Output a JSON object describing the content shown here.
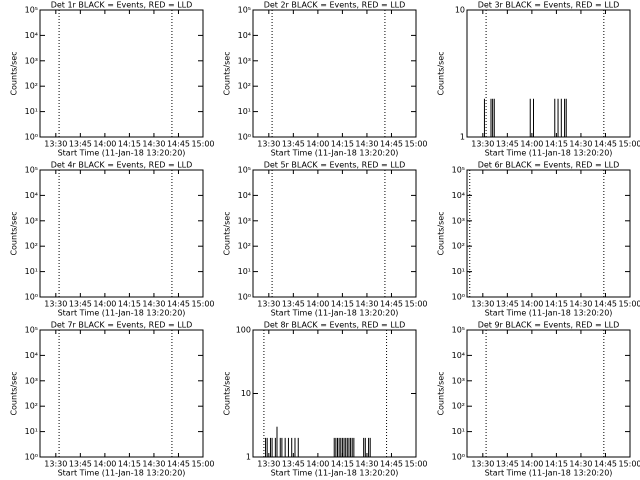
{
  "chart_data": [
    {
      "type": "line",
      "title": "Det 1r BLACK = Events, RED = LLD",
      "x_label": "Start Time (11-Jan-18 13:20:20)",
      "y_label": "Counts/sec",
      "log_y": true,
      "xlim": [
        20.33,
        120
      ],
      "xticks": [
        {
          "value": 30,
          "label": "13:30"
        },
        {
          "value": 45,
          "label": "13:45"
        },
        {
          "value": 60,
          "label": "14:00"
        },
        {
          "value": 75,
          "label": "14:15"
        },
        {
          "value": 90,
          "label": "14:30"
        },
        {
          "value": 105,
          "label": "14:45"
        },
        {
          "value": 120,
          "label": "15:00"
        }
      ],
      "ylim": [
        1,
        100000
      ],
      "yticks": [
        {
          "value": 1,
          "label": "10⁰"
        },
        {
          "value": 10,
          "label": "10¹"
        },
        {
          "value": 100,
          "label": "10²"
        },
        {
          "value": 1000,
          "label": "10³"
        },
        {
          "value": 10000,
          "label": "10⁴"
        },
        {
          "value": 100000,
          "label": "10⁵"
        }
      ],
      "vlines": [
        32,
        101
      ],
      "series": []
    },
    {
      "type": "line",
      "title": "Det 2r BLACK = Events, RED = LLD",
      "x_label": "Start Time (11-Jan-18 13:20:20)",
      "y_label": "Counts/sec",
      "log_y": true,
      "xlim": [
        20.33,
        120
      ],
      "xticks": [
        {
          "value": 30,
          "label": "13:30"
        },
        {
          "value": 45,
          "label": "13:45"
        },
        {
          "value": 60,
          "label": "14:00"
        },
        {
          "value": 75,
          "label": "14:15"
        },
        {
          "value": 90,
          "label": "14:30"
        },
        {
          "value": 105,
          "label": "14:45"
        },
        {
          "value": 120,
          "label": "15:00"
        }
      ],
      "ylim": [
        1,
        100000
      ],
      "yticks": [
        {
          "value": 1,
          "label": "10⁰"
        },
        {
          "value": 10,
          "label": "10¹"
        },
        {
          "value": 100,
          "label": "10²"
        },
        {
          "value": 1000,
          "label": "10³"
        },
        {
          "value": 10000,
          "label": "10⁴"
        },
        {
          "value": 100000,
          "label": "10⁵"
        }
      ],
      "vlines": [
        32,
        101
      ],
      "series": []
    },
    {
      "type": "line",
      "title": "Det 3r BLACK = Events, RED = LLD",
      "x_label": "Start Time (11-Jan-18 13:20:20)",
      "y_label": "Counts/sec",
      "log_y": true,
      "xlim": [
        20.33,
        120
      ],
      "xticks": [
        {
          "value": 30,
          "label": "13:30"
        },
        {
          "value": 45,
          "label": "13:45"
        },
        {
          "value": 60,
          "label": "14:00"
        },
        {
          "value": 75,
          "label": "14:15"
        },
        {
          "value": 90,
          "label": "14:30"
        },
        {
          "value": 105,
          "label": "14:45"
        },
        {
          "value": 120,
          "label": "15:00"
        }
      ],
      "ylim": [
        1,
        10
      ],
      "yticks": [
        1,
        10
      ],
      "vlines": [
        32,
        104
      ],
      "series": [
        {
          "color": "#000000",
          "x": [
            31,
            35,
            36,
            37,
            59,
            61,
            74,
            76,
            78,
            80,
            81
          ],
          "values": [
            2,
            2,
            2,
            2,
            2,
            2,
            2,
            2,
            2,
            2,
            2
          ]
        }
      ]
    },
    {
      "type": "line",
      "title": "Det 4r BLACK = Events, RED = LLD",
      "x_label": "Start Time (11-Jan-18 13:20:20)",
      "y_label": "Counts/sec",
      "log_y": true,
      "xlim": [
        20.33,
        120
      ],
      "xticks": [
        {
          "value": 30,
          "label": "13:30"
        },
        {
          "value": 45,
          "label": "13:45"
        },
        {
          "value": 60,
          "label": "14:00"
        },
        {
          "value": 75,
          "label": "14:15"
        },
        {
          "value": 90,
          "label": "14:30"
        },
        {
          "value": 105,
          "label": "14:45"
        },
        {
          "value": 120,
          "label": "15:00"
        }
      ],
      "ylim": [
        1,
        100000
      ],
      "yticks": [
        {
          "value": 1,
          "label": "10⁰"
        },
        {
          "value": 10,
          "label": "10¹"
        },
        {
          "value": 100,
          "label": "10²"
        },
        {
          "value": 1000,
          "label": "10³"
        },
        {
          "value": 10000,
          "label": "10⁴"
        },
        {
          "value": 100000,
          "label": "10⁵"
        }
      ],
      "vlines": [
        32,
        101
      ],
      "series": []
    },
    {
      "type": "line",
      "title": "Det 5r BLACK = Events, RED = LLD",
      "x_label": "Start Time (11-Jan-18 13:20:20)",
      "y_label": "Counts/sec",
      "log_y": true,
      "xlim": [
        20.33,
        120
      ],
      "xticks": [
        {
          "value": 30,
          "label": "13:30"
        },
        {
          "value": 45,
          "label": "13:45"
        },
        {
          "value": 60,
          "label": "14:00"
        },
        {
          "value": 75,
          "label": "14:15"
        },
        {
          "value": 90,
          "label": "14:30"
        },
        {
          "value": 105,
          "label": "14:45"
        },
        {
          "value": 120,
          "label": "15:00"
        }
      ],
      "ylim": [
        1,
        100000
      ],
      "yticks": [
        {
          "value": 1,
          "label": "10⁰"
        },
        {
          "value": 10,
          "label": "10¹"
        },
        {
          "value": 100,
          "label": "10²"
        },
        {
          "value": 1000,
          "label": "10³"
        },
        {
          "value": 10000,
          "label": "10⁴"
        },
        {
          "value": 100000,
          "label": "10⁵"
        }
      ],
      "vlines": [
        32,
        101
      ],
      "series": []
    },
    {
      "type": "line",
      "title": "Det 6r BLACK = Events, RED = LLD",
      "x_label": "Start Time (11-Jan-18 13:20:20)",
      "y_label": "Counts/sec",
      "log_y": true,
      "xlim": [
        20.33,
        120
      ],
      "xticks": [
        {
          "value": 30,
          "label": "13:30"
        },
        {
          "value": 45,
          "label": "13:45"
        },
        {
          "value": 60,
          "label": "14:00"
        },
        {
          "value": 75,
          "label": "14:15"
        },
        {
          "value": 90,
          "label": "14:30"
        },
        {
          "value": 105,
          "label": "14:45"
        },
        {
          "value": 120,
          "label": "15:00"
        }
      ],
      "ylim": [
        1,
        100000
      ],
      "yticks": [
        {
          "value": 1,
          "label": "10⁰"
        },
        {
          "value": 10,
          "label": "10¹"
        },
        {
          "value": 100,
          "label": "10²"
        },
        {
          "value": 1000,
          "label": "10³"
        },
        {
          "value": 10000,
          "label": "10⁴"
        },
        {
          "value": 100000,
          "label": "10⁵"
        }
      ],
      "vlines": [
        22,
        104
      ],
      "series": []
    },
    {
      "type": "line",
      "title": "Det 7r BLACK = Events, RED = LLD",
      "x_label": "Start Time (11-Jan-18 13:20:20)",
      "y_label": "Counts/sec",
      "log_y": true,
      "xlim": [
        20.33,
        120
      ],
      "xticks": [
        {
          "value": 30,
          "label": "13:30"
        },
        {
          "value": 45,
          "label": "13:45"
        },
        {
          "value": 60,
          "label": "14:00"
        },
        {
          "value": 75,
          "label": "14:15"
        },
        {
          "value": 90,
          "label": "14:30"
        },
        {
          "value": 105,
          "label": "14:45"
        },
        {
          "value": 120,
          "label": "15:00"
        }
      ],
      "ylim": [
        1,
        100000
      ],
      "yticks": [
        {
          "value": 1,
          "label": "10⁰"
        },
        {
          "value": 10,
          "label": "10¹"
        },
        {
          "value": 100,
          "label": "10²"
        },
        {
          "value": 1000,
          "label": "10³"
        },
        {
          "value": 10000,
          "label": "10⁴"
        },
        {
          "value": 100000,
          "label": "10⁵"
        }
      ],
      "vlines": [
        32,
        101
      ],
      "series": []
    },
    {
      "type": "line",
      "title": "Det 8r BLACK = Events, RED = LLD",
      "x_label": "Start Time (11-Jan-18 13:20:20)",
      "y_label": "Counts/sec",
      "log_y": true,
      "xlim": [
        20.33,
        120
      ],
      "xticks": [
        {
          "value": 30,
          "label": "13:30"
        },
        {
          "value": 45,
          "label": "13:45"
        },
        {
          "value": 60,
          "label": "14:00"
        },
        {
          "value": 75,
          "label": "14:15"
        },
        {
          "value": 90,
          "label": "14:30"
        },
        {
          "value": 105,
          "label": "14:45"
        },
        {
          "value": 120,
          "label": "15:00"
        }
      ],
      "ylim": [
        1,
        100
      ],
      "yticks": [
        1,
        10,
        100
      ],
      "vlines": [
        27,
        102
      ],
      "series": [
        {
          "color": "#000000",
          "x": [
            28,
            29,
            31,
            32,
            34,
            35,
            37,
            38,
            40,
            42,
            44,
            46,
            48,
            70,
            71,
            72,
            73,
            74,
            75,
            76,
            77,
            78,
            79,
            80,
            81,
            82,
            88,
            89,
            91,
            92
          ],
          "values": [
            2,
            2,
            2,
            2,
            2,
            3,
            2,
            2,
            2,
            2,
            2,
            2,
            2,
            2,
            2,
            2,
            2,
            2,
            2,
            2,
            2,
            2,
            2,
            2,
            2,
            2,
            2,
            2,
            2,
            2
          ]
        }
      ]
    },
    {
      "type": "line",
      "title": "Det 9r BLACK = Events, RED = LLD",
      "x_label": "Start Time (11-Jan-18 13:20:20)",
      "y_label": "Counts/sec",
      "log_y": true,
      "xlim": [
        20.33,
        120
      ],
      "xticks": [
        {
          "value": 30,
          "label": "13:30"
        },
        {
          "value": 45,
          "label": "13:45"
        },
        {
          "value": 60,
          "label": "14:00"
        },
        {
          "value": 75,
          "label": "14:15"
        },
        {
          "value": 90,
          "label": "14:30"
        },
        {
          "value": 105,
          "label": "14:45"
        },
        {
          "value": 120,
          "label": "15:00"
        }
      ],
      "ylim": [
        1,
        100000
      ],
      "yticks": [
        {
          "value": 1,
          "label": "10⁰"
        },
        {
          "value": 10,
          "label": "10¹"
        },
        {
          "value": 100,
          "label": "10²"
        },
        {
          "value": 1000,
          "label": "10³"
        },
        {
          "value": 10000,
          "label": "10⁴"
        },
        {
          "value": 100000,
          "label": "10⁵"
        }
      ],
      "vlines": [
        32,
        104
      ],
      "series": []
    }
  ]
}
